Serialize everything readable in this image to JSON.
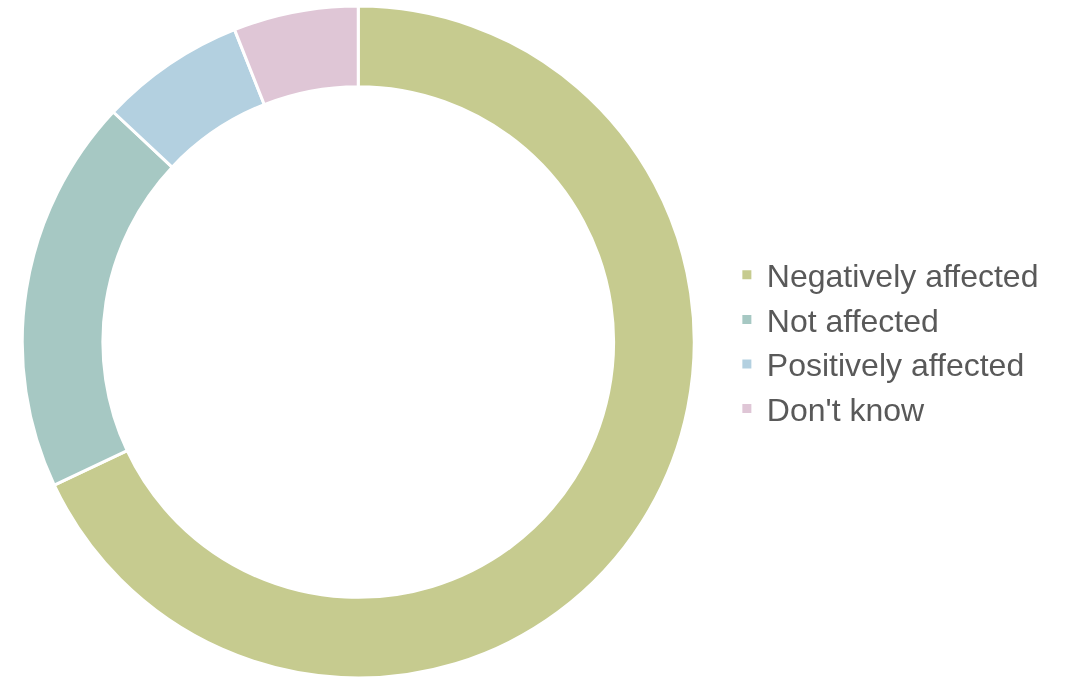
{
  "chart_data": {
    "type": "donut",
    "categories": [
      "Negatively affected",
      "Not affected",
      "Positively affected",
      "Don't know"
    ],
    "values": [
      68,
      19,
      7,
      6
    ],
    "colors": [
      "#c6cb8f",
      "#a6c8c3",
      "#b3d0e0",
      "#dfc6d6"
    ],
    "legend": "right"
  }
}
